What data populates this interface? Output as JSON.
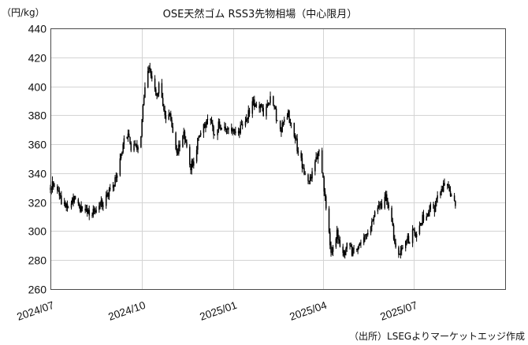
{
  "chart_data": {
    "type": "candlestick",
    "title": "OSE天然ゴム RSS3先物相場（中心限月）",
    "unit_label": "（円/kg）",
    "source": "（出所）LSEGよりマーケットエッジ作成",
    "ylim": [
      260,
      440
    ],
    "y_ticks": [
      260,
      280,
      300,
      320,
      340,
      360,
      380,
      400,
      420,
      440
    ],
    "x_range": [
      "2024-07-01",
      "2025-10-01"
    ],
    "x_ticks": [
      {
        "date": "2024-07-01",
        "label": "2024/07"
      },
      {
        "date": "2024-10-01",
        "label": "2024/10"
      },
      {
        "date": "2025-01-01",
        "label": "2025/01"
      },
      {
        "date": "2025-04-01",
        "label": "2025/04"
      },
      {
        "date": "2025-07-01",
        "label": "2025/07"
      },
      {
        "date": "2025-10-01",
        "label": ""
      }
    ],
    "grid": true,
    "legend": "none",
    "price_path": [
      [
        "2024-07-01",
        330
      ],
      [
        "2024-07-03",
        335
      ],
      [
        "2024-07-08",
        328
      ],
      [
        "2024-07-12",
        320
      ],
      [
        "2024-07-18",
        318
      ],
      [
        "2024-07-24",
        323
      ],
      [
        "2024-07-30",
        317
      ],
      [
        "2024-08-05",
        314
      ],
      [
        "2024-08-12",
        313
      ],
      [
        "2024-08-20",
        318
      ],
      [
        "2024-08-26",
        322
      ],
      [
        "2024-08-30",
        328
      ],
      [
        "2024-09-04",
        335
      ],
      [
        "2024-09-09",
        348
      ],
      [
        "2024-09-13",
        362
      ],
      [
        "2024-09-17",
        370
      ],
      [
        "2024-09-20",
        358
      ],
      [
        "2024-09-24",
        360
      ],
      [
        "2024-09-27",
        356
      ],
      [
        "2024-09-30",
        368
      ],
      [
        "2024-10-02",
        388
      ],
      [
        "2024-10-04",
        398
      ],
      [
        "2024-10-07",
        410
      ],
      [
        "2024-10-09",
        414
      ],
      [
        "2024-10-11",
        405
      ],
      [
        "2024-10-15",
        393
      ],
      [
        "2024-10-18",
        400
      ],
      [
        "2024-10-22",
        388
      ],
      [
        "2024-10-25",
        376
      ],
      [
        "2024-10-29",
        382
      ],
      [
        "2024-11-01",
        367
      ],
      [
        "2024-11-05",
        355
      ],
      [
        "2024-11-08",
        358
      ],
      [
        "2024-11-12",
        368
      ],
      [
        "2024-11-15",
        360
      ],
      [
        "2024-11-19",
        344
      ],
      [
        "2024-11-22",
        350
      ],
      [
        "2024-11-26",
        362
      ],
      [
        "2024-11-29",
        366
      ],
      [
        "2024-12-03",
        373
      ],
      [
        "2024-12-06",
        378
      ],
      [
        "2024-12-10",
        372
      ],
      [
        "2024-12-13",
        367
      ],
      [
        "2024-12-17",
        373
      ],
      [
        "2024-12-20",
        369
      ],
      [
        "2024-12-24",
        372
      ],
      [
        "2024-12-27",
        370
      ],
      [
        "2025-01-06",
        367
      ],
      [
        "2025-01-09",
        372
      ],
      [
        "2025-01-14",
        378
      ],
      [
        "2025-01-17",
        383
      ],
      [
        "2025-01-21",
        388
      ],
      [
        "2025-01-24",
        385
      ],
      [
        "2025-01-28",
        388
      ],
      [
        "2025-01-31",
        380
      ],
      [
        "2025-02-04",
        386
      ],
      [
        "2025-02-07",
        392
      ],
      [
        "2025-02-11",
        386
      ],
      [
        "2025-02-14",
        376
      ],
      [
        "2025-02-18",
        370
      ],
      [
        "2025-02-21",
        378
      ],
      [
        "2025-02-25",
        381
      ],
      [
        "2025-02-28",
        373
      ],
      [
        "2025-03-04",
        365
      ],
      [
        "2025-03-07",
        354
      ],
      [
        "2025-03-11",
        346
      ],
      [
        "2025-03-14",
        338
      ],
      [
        "2025-03-18",
        332
      ],
      [
        "2025-03-21",
        342
      ],
      [
        "2025-03-25",
        350
      ],
      [
        "2025-03-28",
        354
      ],
      [
        "2025-04-01",
        338
      ],
      [
        "2025-04-03",
        322
      ],
      [
        "2025-04-07",
        300
      ],
      [
        "2025-04-09",
        285
      ],
      [
        "2025-04-11",
        292
      ],
      [
        "2025-04-15",
        298
      ],
      [
        "2025-04-18",
        290
      ],
      [
        "2025-04-22",
        286
      ],
      [
        "2025-04-25",
        290
      ],
      [
        "2025-04-30",
        286
      ],
      [
        "2025-05-06",
        289
      ],
      [
        "2025-05-09",
        294
      ],
      [
        "2025-05-13",
        296
      ],
      [
        "2025-05-16",
        300
      ],
      [
        "2025-05-20",
        308
      ],
      [
        "2025-05-23",
        314
      ],
      [
        "2025-05-27",
        320
      ],
      [
        "2025-05-30",
        316
      ],
      [
        "2025-06-03",
        324
      ],
      [
        "2025-06-06",
        318
      ],
      [
        "2025-06-10",
        302
      ],
      [
        "2025-06-13",
        288
      ],
      [
        "2025-06-17",
        285
      ],
      [
        "2025-06-20",
        291
      ],
      [
        "2025-06-24",
        296
      ],
      [
        "2025-06-27",
        294
      ],
      [
        "2025-07-01",
        301
      ],
      [
        "2025-07-04",
        297
      ],
      [
        "2025-07-08",
        305
      ],
      [
        "2025-07-11",
        310
      ],
      [
        "2025-07-15",
        312
      ],
      [
        "2025-07-18",
        318
      ],
      [
        "2025-07-22",
        316
      ],
      [
        "2025-07-25",
        322
      ],
      [
        "2025-07-29",
        327
      ],
      [
        "2025-08-01",
        333
      ],
      [
        "2025-08-05",
        330
      ],
      [
        "2025-08-08",
        323
      ],
      [
        "2025-08-12",
        317
      ]
    ]
  }
}
